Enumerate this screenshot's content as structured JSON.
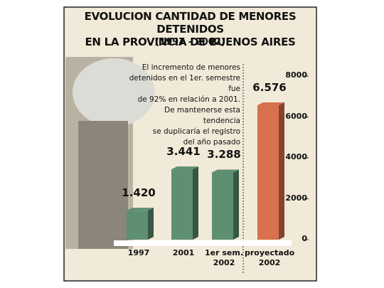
{
  "chart_data": {
    "type": "bar",
    "title": "EVOLUCION CANTIDAD DE MENORES DETENIDOS\nEN LA PROVINCIA DE BUENOS AIRES",
    "subtitle": "(1997 - 2002)",
    "annotation": "El incremento de menores\ndetenidos en el 1er. semestre fue\nde 92% en relación a 2001.\nDe mantenerse esta tendencia\nse duplicaría el registro\ndel año pasado",
    "categories": [
      "1997",
      "2001",
      "1er sem.\n2002",
      "proyectado\n2002"
    ],
    "values": [
      1420,
      3441,
      3288,
      6576
    ],
    "value_labels": [
      "1.420",
      "3.441",
      "3.288",
      "6.576"
    ],
    "colors": [
      "#5e8f70",
      "#5e8f70",
      "#5e8f70",
      "#d8714e"
    ],
    "ylim": [
      0,
      8000
    ],
    "yticks": [
      0,
      2000,
      4000,
      6000,
      8000
    ]
  }
}
